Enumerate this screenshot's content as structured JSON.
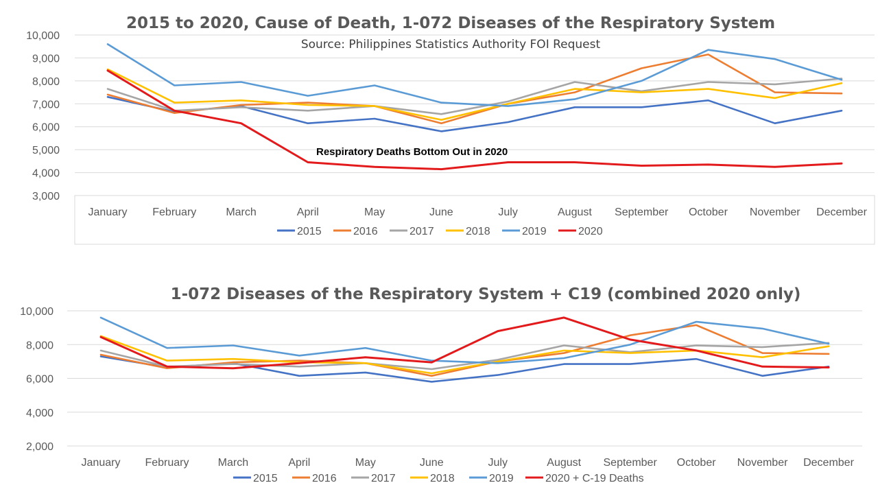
{
  "chart_data": [
    {
      "type": "line",
      "title": "2015 to 2020, Cause of Death, 1-072 Diseases of the Respiratory System",
      "subtitle": "Source: Philippines Statistics Authority FOI Request",
      "annotation": "Respiratory Deaths Bottom Out in 2020",
      "categories": [
        "January",
        "February",
        "March",
        "April",
        "May",
        "June",
        "July",
        "August",
        "September",
        "October",
        "November",
        "December"
      ],
      "ylim": [
        3000,
        10000
      ],
      "yticks": [
        "3,000",
        "4,000",
        "5,000",
        "6,000",
        "7,000",
        "8,000",
        "9,000",
        "10,000"
      ],
      "yticks_values": [
        3000,
        4000,
        5000,
        6000,
        7000,
        8000,
        9000,
        10000
      ],
      "grid": true,
      "legend_position": "bottom",
      "series": [
        {
          "name": "2015",
          "color": "#4472C4",
          "values": [
            7300,
            6650,
            6900,
            6150,
            6350,
            5800,
            6200,
            6850,
            6850,
            7150,
            6150,
            6700
          ]
        },
        {
          "name": "2016",
          "color": "#ED7D31",
          "values": [
            7400,
            6600,
            6950,
            7050,
            6900,
            6150,
            7000,
            7500,
            8550,
            9150,
            7500,
            7450
          ]
        },
        {
          "name": "2017",
          "color": "#A5A5A5",
          "values": [
            7650,
            6700,
            6850,
            6700,
            6900,
            6550,
            7100,
            7950,
            7550,
            7950,
            7850,
            8100
          ]
        },
        {
          "name": "2018",
          "color": "#FFC000",
          "values": [
            8500,
            7050,
            7150,
            6950,
            6900,
            6300,
            7000,
            7650,
            7500,
            7650,
            7250,
            7900
          ]
        },
        {
          "name": "2019",
          "color": "#5B9BD5",
          "values": [
            9600,
            7800,
            7950,
            7350,
            7800,
            7050,
            6900,
            7200,
            8000,
            9350,
            8950,
            8050
          ]
        },
        {
          "name": "2020",
          "color": "#E31A1C",
          "values": [
            8450,
            6700,
            6150,
            4450,
            4250,
            4150,
            4450,
            4450,
            4300,
            4350,
            4250,
            4400
          ]
        }
      ]
    },
    {
      "type": "line",
      "title": "1-072 Diseases of the Respiratory System + C19 (combined 2020 only)",
      "categories": [
        "January",
        "February",
        "March",
        "April",
        "May",
        "June",
        "July",
        "August",
        "September",
        "October",
        "November",
        "December"
      ],
      "ylim": [
        2000,
        10000
      ],
      "yticks": [
        "2,000",
        "4,000",
        "6,000",
        "8,000",
        "10,000"
      ],
      "yticks_values": [
        2000,
        4000,
        6000,
        8000,
        10000
      ],
      "grid": true,
      "legend_position": "bottom",
      "series": [
        {
          "name": "2015",
          "color": "#4472C4",
          "values": [
            7300,
            6650,
            6900,
            6150,
            6350,
            5800,
            6200,
            6850,
            6850,
            7150,
            6150,
            6700
          ]
        },
        {
          "name": "2016",
          "color": "#ED7D31",
          "values": [
            7400,
            6600,
            6950,
            7050,
            6900,
            6150,
            7000,
            7500,
            8550,
            9150,
            7500,
            7450
          ]
        },
        {
          "name": "2017",
          "color": "#A5A5A5",
          "values": [
            7650,
            6700,
            6850,
            6700,
            6900,
            6550,
            7100,
            7950,
            7550,
            7950,
            7850,
            8100
          ]
        },
        {
          "name": "2018",
          "color": "#FFC000",
          "values": [
            8500,
            7050,
            7150,
            6950,
            6900,
            6300,
            7000,
            7650,
            7500,
            7650,
            7250,
            7900
          ]
        },
        {
          "name": "2019",
          "color": "#5B9BD5",
          "values": [
            9600,
            7800,
            7950,
            7350,
            7800,
            7050,
            6900,
            7200,
            8000,
            9350,
            8950,
            8050
          ]
        },
        {
          "name": "2020 + C-19 Deaths",
          "color": "#E31A1C",
          "values": [
            8450,
            6700,
            6600,
            6900,
            7250,
            6950,
            8800,
            9600,
            8300,
            7650,
            6700,
            6650
          ]
        }
      ]
    }
  ]
}
